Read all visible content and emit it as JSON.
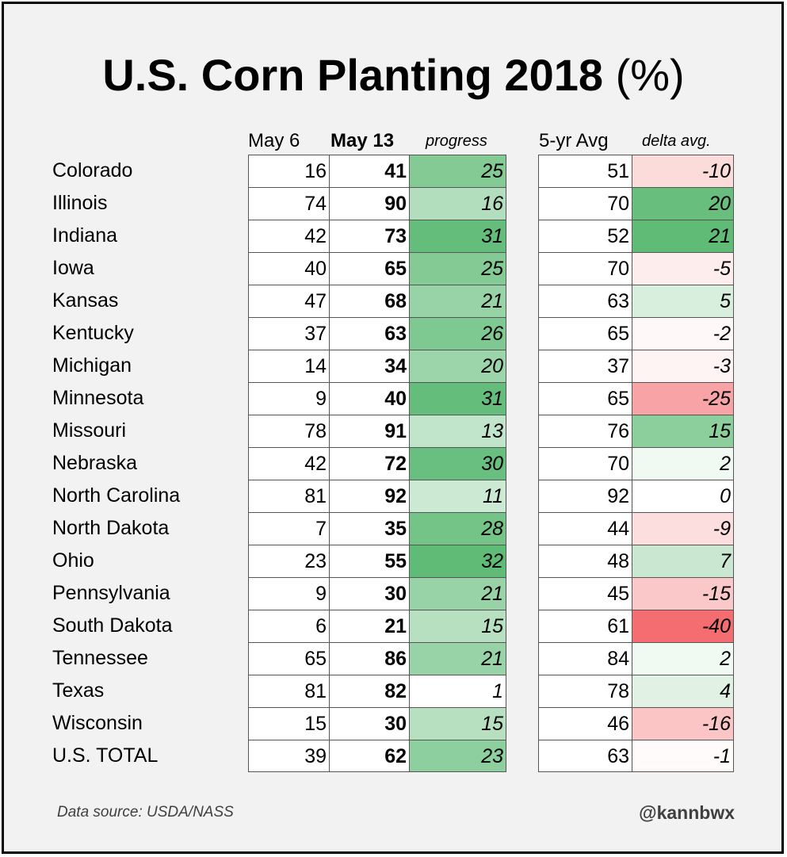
{
  "title": "U.S. Corn Planting 2018",
  "title_unit": "(%)",
  "columns": {
    "may6": "May 6",
    "may13": "May 13",
    "progress": "progress",
    "avg": "5-yr Avg",
    "delta": "delta avg."
  },
  "colors": {
    "progress_max": "#5fbb76",
    "delta_positive_max": "#5fbb76",
    "delta_negative_max": "#f46d70",
    "neutral": "#ffffff",
    "frame_background": "#f2f2f2"
  },
  "footer": {
    "source": "Data source: USDA/NASS",
    "handle": "@kannbwx"
  },
  "chart_data": {
    "type": "table",
    "title": "U.S. Corn Planting 2018 (%)",
    "headers": [
      "May 6",
      "May 13",
      "progress",
      "5-yr Avg",
      "delta avg."
    ],
    "rows": [
      {
        "state": "Colorado",
        "may6": 16,
        "may13": 41,
        "progress": 25,
        "avg5": 51,
        "delta": -10
      },
      {
        "state": "Illinois",
        "may6": 74,
        "may13": 90,
        "progress": 16,
        "avg5": 70,
        "delta": 20
      },
      {
        "state": "Indiana",
        "may6": 42,
        "may13": 73,
        "progress": 31,
        "avg5": 52,
        "delta": 21
      },
      {
        "state": "Iowa",
        "may6": 40,
        "may13": 65,
        "progress": 25,
        "avg5": 70,
        "delta": -5
      },
      {
        "state": "Kansas",
        "may6": 47,
        "may13": 68,
        "progress": 21,
        "avg5": 63,
        "delta": 5
      },
      {
        "state": "Kentucky",
        "may6": 37,
        "may13": 63,
        "progress": 26,
        "avg5": 65,
        "delta": -2
      },
      {
        "state": "Michigan",
        "may6": 14,
        "may13": 34,
        "progress": 20,
        "avg5": 37,
        "delta": -3
      },
      {
        "state": "Minnesota",
        "may6": 9,
        "may13": 40,
        "progress": 31,
        "avg5": 65,
        "delta": -25
      },
      {
        "state": "Missouri",
        "may6": 78,
        "may13": 91,
        "progress": 13,
        "avg5": 76,
        "delta": 15
      },
      {
        "state": "Nebraska",
        "may6": 42,
        "may13": 72,
        "progress": 30,
        "avg5": 70,
        "delta": 2
      },
      {
        "state": "North Carolina",
        "may6": 81,
        "may13": 92,
        "progress": 11,
        "avg5": 92,
        "delta": 0
      },
      {
        "state": "North Dakota",
        "may6": 7,
        "may13": 35,
        "progress": 28,
        "avg5": 44,
        "delta": -9
      },
      {
        "state": "Ohio",
        "may6": 23,
        "may13": 55,
        "progress": 32,
        "avg5": 48,
        "delta": 7
      },
      {
        "state": "Pennsylvania",
        "may6": 9,
        "may13": 30,
        "progress": 21,
        "avg5": 45,
        "delta": -15
      },
      {
        "state": "South Dakota",
        "may6": 6,
        "may13": 21,
        "progress": 15,
        "avg5": 61,
        "delta": -40
      },
      {
        "state": "Tennessee",
        "may6": 65,
        "may13": 86,
        "progress": 21,
        "avg5": 84,
        "delta": 2
      },
      {
        "state": "Texas",
        "may6": 81,
        "may13": 82,
        "progress": 1,
        "avg5": 78,
        "delta": 4
      },
      {
        "state": "Wisconsin",
        "may6": 15,
        "may13": 30,
        "progress": 15,
        "avg5": 46,
        "delta": -16
      },
      {
        "state": "U.S. TOTAL",
        "may6": 39,
        "may13": 62,
        "progress": 23,
        "avg5": 63,
        "delta": -1
      }
    ]
  }
}
